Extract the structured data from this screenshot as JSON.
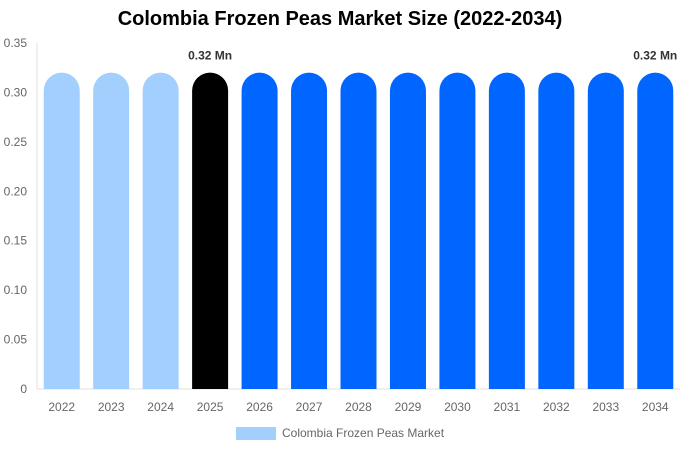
{
  "chart_data": {
    "type": "bar",
    "title": "Colombia Frozen Peas Market Size (2022-2034)",
    "categories": [
      "2022",
      "2023",
      "2024",
      "2025",
      "2026",
      "2027",
      "2028",
      "2029",
      "2030",
      "2031",
      "2032",
      "2033",
      "2034"
    ],
    "series": [
      {
        "name": "Colombia Frozen Peas Market",
        "values": [
          0.32,
          0.32,
          0.32,
          0.32,
          0.32,
          0.32,
          0.32,
          0.32,
          0.32,
          0.32,
          0.32,
          0.32,
          0.32
        ]
      }
    ],
    "bar_colors": [
      "#a3cfff",
      "#a3cfff",
      "#a3cfff",
      "#000000",
      "#0066ff",
      "#0066ff",
      "#0066ff",
      "#0066ff",
      "#0066ff",
      "#0066ff",
      "#0066ff",
      "#0066ff",
      "#0066ff"
    ],
    "data_labels": [
      {
        "category": "2025",
        "text": "0.32 Mn"
      },
      {
        "category": "2034",
        "text": "0.32 Mn"
      }
    ],
    "y_ticks": [
      "0",
      "0.05",
      "0.10",
      "0.15",
      "0.20",
      "0.25",
      "0.30",
      "0.35"
    ],
    "ylim": [
      0,
      0.35
    ],
    "xlabel": "",
    "ylabel": "",
    "grid": false,
    "legend_position": "bottom"
  }
}
